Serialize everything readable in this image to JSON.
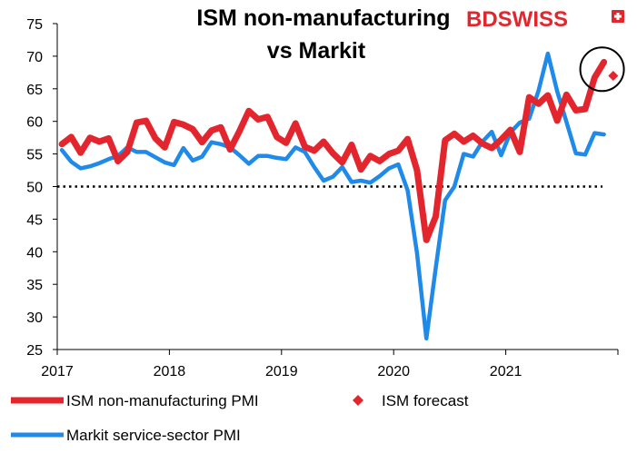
{
  "brand": {
    "name_part1": "BD",
    "name_part2": "SWISS",
    "color": "#e3262e"
  },
  "chart_data": {
    "type": "line",
    "title_lines": [
      "ISM non-manufacturing",
      "vs Markit"
    ],
    "xlabel": "",
    "ylabel": "",
    "ylim": [
      25,
      75
    ],
    "y_ticks": [
      "25",
      "30",
      "35",
      "40",
      "45",
      "50",
      "55",
      "60",
      "65",
      "70",
      "75"
    ],
    "x_range": [
      "2017-01",
      "2021-12"
    ],
    "x_ticks": [
      "2017",
      "2018",
      "2019",
      "2020",
      "2021"
    ],
    "grid": false,
    "reference_line": {
      "y": 50,
      "style": "dotted",
      "color": "#000000"
    },
    "legend_position": "bottom",
    "series": [
      {
        "name": "ISM non-manufacturing PMI",
        "color": "#e3262e",
        "values": [
          56.5,
          57.6,
          55.2,
          57.5,
          56.9,
          57.4,
          53.9,
          55.3,
          59.8,
          60.1,
          57.4,
          56.0,
          59.9,
          59.5,
          58.8,
          56.8,
          58.6,
          59.1,
          55.7,
          58.5,
          61.6,
          60.3,
          60.7,
          57.6,
          56.7,
          59.7,
          56.1,
          55.5,
          56.9,
          55.1,
          53.7,
          56.4,
          52.6,
          54.7,
          53.9,
          55.0,
          55.5,
          57.3,
          52.5,
          41.8,
          45.4,
          57.1,
          58.1,
          56.9,
          57.8,
          56.6,
          55.9,
          57.2,
          58.7,
          55.3,
          63.7,
          62.7,
          64.0,
          60.1,
          64.1,
          61.7,
          61.9,
          66.7,
          69.1
        ]
      },
      {
        "name": "Markit service-sector PMI",
        "color": "#1f8ae8",
        "values": [
          55.6,
          53.8,
          52.8,
          53.1,
          53.6,
          54.2,
          54.7,
          56.0,
          55.3,
          55.3,
          54.5,
          53.7,
          53.3,
          55.9,
          54.0,
          54.6,
          56.8,
          56.5,
          56.0,
          54.8,
          53.5,
          54.7,
          54.7,
          54.4,
          54.2,
          56.0,
          55.3,
          53.0,
          50.9,
          51.5,
          53.0,
          50.7,
          50.9,
          50.6,
          51.6,
          52.8,
          53.4,
          49.4,
          39.8,
          26.7,
          37.5,
          47.9,
          50.0,
          55.0,
          54.6,
          56.9,
          58.4,
          54.8,
          58.3,
          59.8,
          60.4,
          64.7,
          70.4,
          64.6,
          59.9,
          55.1,
          54.9,
          58.2,
          58.0
        ]
      },
      {
        "name": "ISM forecast",
        "color": "#e3262e",
        "marker": "diamond",
        "points": [
          {
            "x": "2021-12",
            "y": 67.0
          }
        ]
      }
    ],
    "annotation": {
      "type": "circle",
      "around": "2021-11",
      "color": "#000000"
    }
  }
}
